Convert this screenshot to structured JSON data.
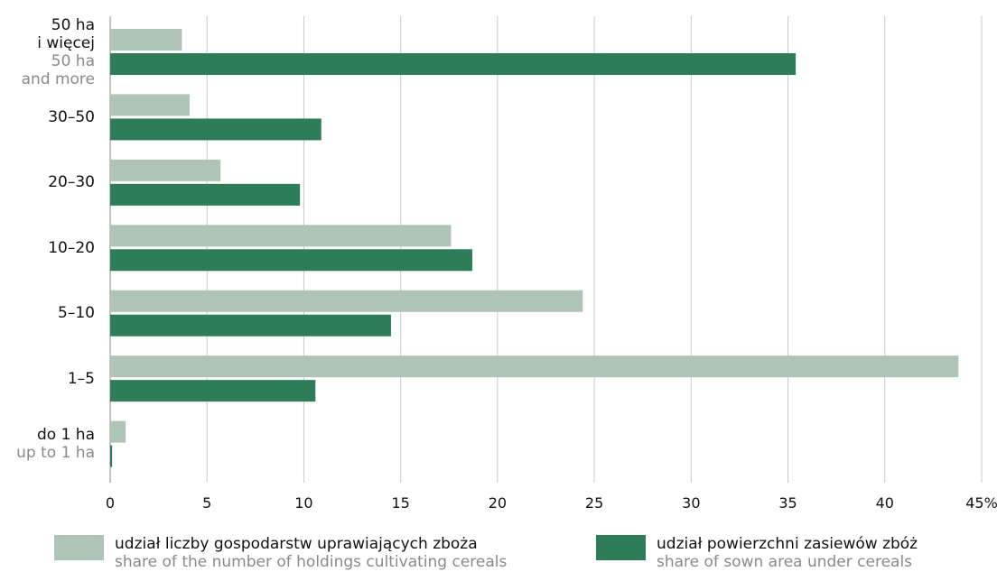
{
  "chart_data": {
    "type": "bar",
    "orientation": "horizontal",
    "categories": [
      {
        "pl": "50 ha\ni więcej",
        "en": "50 ha\nand more"
      },
      {
        "pl": "30–50",
        "en": ""
      },
      {
        "pl": "20–30",
        "en": ""
      },
      {
        "pl": "10–20",
        "en": ""
      },
      {
        "pl": "5–10",
        "en": ""
      },
      {
        "pl": "1–5",
        "en": ""
      },
      {
        "pl": "do 1 ha",
        "en": "up to 1 ha"
      }
    ],
    "series": [
      {
        "name": "udział liczby gospodarstw uprawiających zboża",
        "name_en": "share of the number of holdings cultivating cereals",
        "color": "#adc4b7",
        "values": [
          3.7,
          4.1,
          5.7,
          17.6,
          24.4,
          43.8,
          0.8
        ]
      },
      {
        "name": "udział powierzchni zasiewów zbóż",
        "name_en": "share of sown area under cereals",
        "color": "#2e7d58",
        "values": [
          35.4,
          10.9,
          9.8,
          18.7,
          14.5,
          10.6,
          0.1
        ]
      }
    ],
    "xlim": [
      0,
      45
    ],
    "xticks": [
      "0",
      "5",
      "10",
      "15",
      "20",
      "25",
      "30",
      "35",
      "40",
      "45%"
    ],
    "grid": true,
    "legend_position": "bottom"
  }
}
